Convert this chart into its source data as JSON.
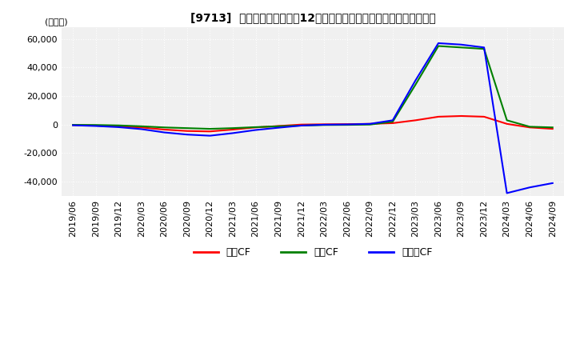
{
  "title": "[9713]  キャッシュフローの12か月移動合計の対前年同期増減額の推移",
  "ylabel": "(百万円)",
  "ylim": [
    -50000,
    68000
  ],
  "yticks": [
    -40000,
    -20000,
    0,
    20000,
    40000,
    60000
  ],
  "legend_labels": [
    "営業CF",
    "投資CF",
    "フリーCF"
  ],
  "legend_colors": [
    "#ff0000",
    "#008000",
    "#0000ff"
  ],
  "background_color": "#ffffff",
  "plot_bg_color": "#f0f0f0",
  "grid_color": "#ffffff",
  "dates": [
    "2019/06",
    "2019/09",
    "2019/12",
    "2020/03",
    "2020/06",
    "2020/09",
    "2020/12",
    "2021/03",
    "2021/06",
    "2021/09",
    "2021/12",
    "2022/03",
    "2022/06",
    "2022/09",
    "2022/12",
    "2023/03",
    "2023/06",
    "2023/09",
    "2023/12",
    "2024/03",
    "2024/06",
    "2024/09"
  ],
  "operating_cf": [
    -300,
    -700,
    -1200,
    -2000,
    -3500,
    -4500,
    -4800,
    -3500,
    -2000,
    -1000,
    0,
    200,
    300,
    500,
    1000,
    3000,
    5500,
    6000,
    5500,
    500,
    -2000,
    -3000
  ],
  "investing_cf": [
    -200,
    -300,
    -600,
    -1200,
    -2000,
    -2500,
    -3000,
    -2500,
    -1800,
    -1200,
    -700,
    -300,
    -200,
    0,
    2000,
    28000,
    55000,
    54000,
    53000,
    3000,
    -1500,
    -2000
  ],
  "free_cf": [
    -500,
    -1000,
    -1800,
    -3200,
    -5500,
    -7000,
    -7800,
    -6000,
    -3800,
    -2200,
    -700,
    -100,
    100,
    500,
    3000,
    31000,
    57000,
    56000,
    54000,
    -48000,
    -44000,
    -41000
  ]
}
